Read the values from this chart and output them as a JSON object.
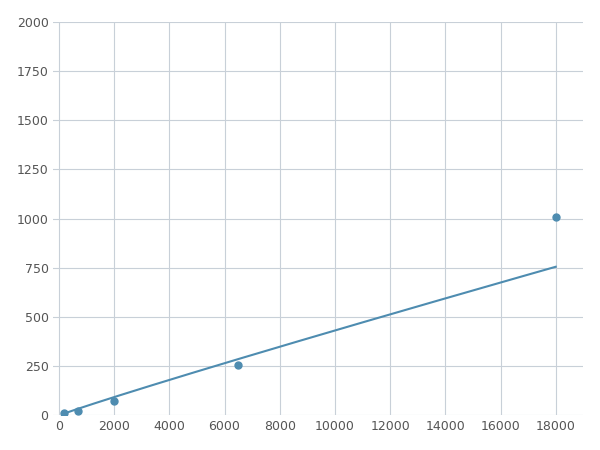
{
  "x": [
    200,
    700,
    2000,
    6500,
    18000
  ],
  "y": [
    15,
    25,
    75,
    255,
    1010
  ],
  "line_color": "#4e8cb0",
  "marker_color": "#4e8cb0",
  "marker_size": 5,
  "xlim": [
    -200,
    19000
  ],
  "ylim": [
    0,
    2000
  ],
  "xticks": [
    0,
    2000,
    4000,
    6000,
    8000,
    10000,
    12000,
    14000,
    16000,
    18000
  ],
  "yticks": [
    0,
    250,
    500,
    750,
    1000,
    1250,
    1500,
    1750,
    2000
  ],
  "grid_color": "#c8d0d8",
  "background_color": "#ffffff",
  "line_width": 1.5,
  "figsize": [
    6.0,
    4.5
  ],
  "dpi": 100
}
